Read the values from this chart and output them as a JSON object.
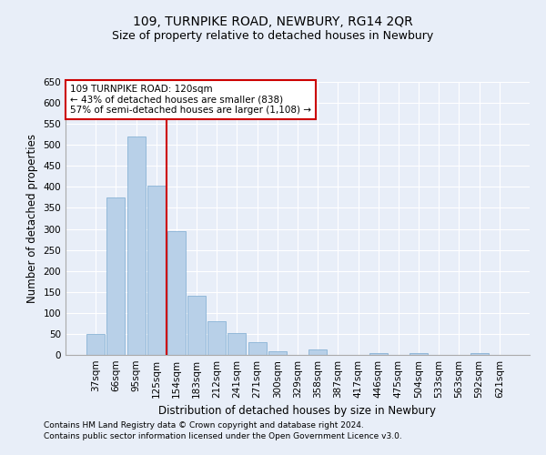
{
  "title": "109, TURNPIKE ROAD, NEWBURY, RG14 2QR",
  "subtitle": "Size of property relative to detached houses in Newbury",
  "xlabel": "Distribution of detached houses by size in Newbury",
  "ylabel": "Number of detached properties",
  "categories": [
    "37sqm",
    "66sqm",
    "95sqm",
    "125sqm",
    "154sqm",
    "183sqm",
    "212sqm",
    "241sqm",
    "271sqm",
    "300sqm",
    "329sqm",
    "358sqm",
    "387sqm",
    "417sqm",
    "446sqm",
    "475sqm",
    "504sqm",
    "533sqm",
    "563sqm",
    "592sqm",
    "621sqm"
  ],
  "values": [
    50,
    375,
    519,
    403,
    295,
    140,
    80,
    53,
    30,
    9,
    0,
    12,
    0,
    0,
    4,
    0,
    4,
    0,
    0,
    5,
    0
  ],
  "bar_color": "#b8d0e8",
  "bar_edge_color": "#7aaad0",
  "vline_color": "#cc0000",
  "annotation_text": "109 TURNPIKE ROAD: 120sqm\n← 43% of detached houses are smaller (838)\n57% of semi-detached houses are larger (1,108) →",
  "annotation_box_color": "#ffffff",
  "annotation_box_edge_color": "#cc0000",
  "ylim": [
    0,
    650
  ],
  "yticks": [
    0,
    50,
    100,
    150,
    200,
    250,
    300,
    350,
    400,
    450,
    500,
    550,
    600,
    650
  ],
  "footer_line1": "Contains HM Land Registry data © Crown copyright and database right 2024.",
  "footer_line2": "Contains public sector information licensed under the Open Government Licence v3.0.",
  "background_color": "#e8eef8",
  "grid_color": "#ffffff",
  "title_fontsize": 10,
  "subtitle_fontsize": 9,
  "label_fontsize": 8.5,
  "tick_fontsize": 7.5,
  "footer_fontsize": 6.5,
  "annotation_fontsize": 7.5
}
